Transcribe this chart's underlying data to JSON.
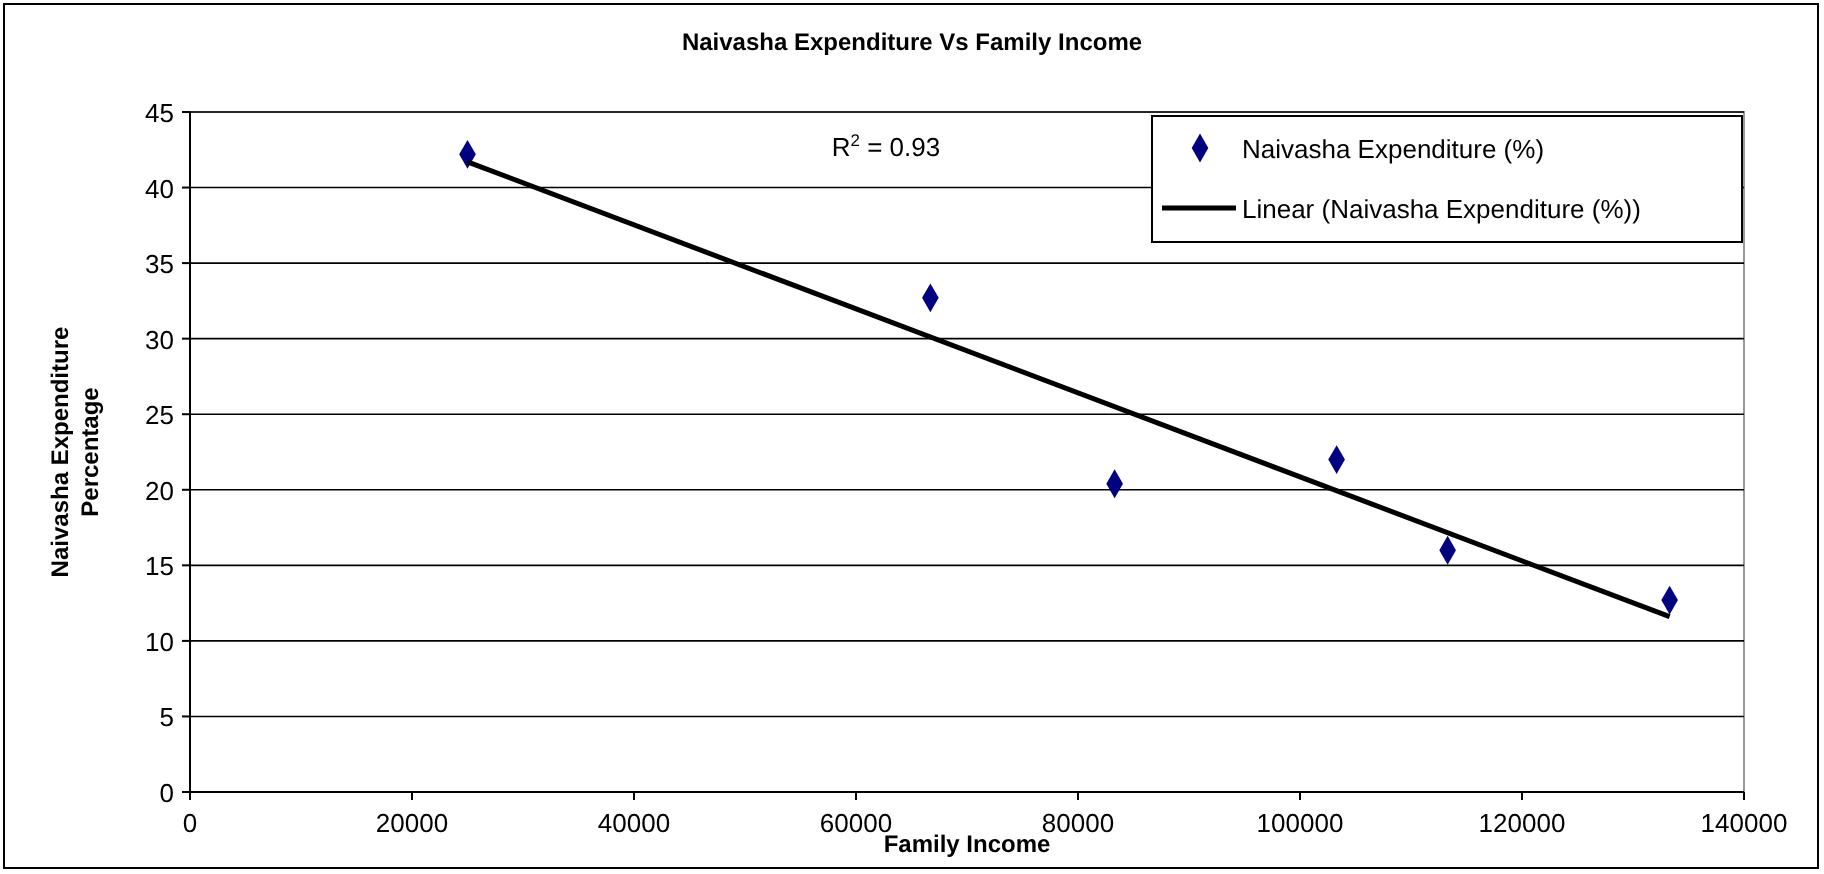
{
  "chart_data": {
    "type": "scatter",
    "title": "Naivasha Expenditure Vs Family Income",
    "xlabel": "Family Income",
    "ylabel": "Naivasha Expenditure Percentage",
    "xlim": [
      0,
      140000
    ],
    "xticks": [
      0,
      20000,
      40000,
      60000,
      80000,
      100000,
      120000,
      140000
    ],
    "ylim": [
      0,
      45
    ],
    "yticks": [
      0,
      5,
      10,
      15,
      20,
      25,
      30,
      35,
      40,
      45
    ],
    "grid": "y",
    "legend": "top right",
    "annotations": [
      "R$^{2}$ = 0.93"
    ],
    "series": [
      {
        "name": "Naivasha Expenditure (%)",
        "color": "#000080",
        "marker": "diamond",
        "x": [
          25000,
          66700,
          83300,
          103300,
          113300,
          133300
        ],
        "values": [
          42.2,
          32.7,
          20.4,
          22.0,
          16.0,
          12.7
        ]
      },
      {
        "type": "line",
        "name": "Linear (Naivasha Expenditure (%))",
        "color": "#000000",
        "line_style": "solid",
        "marker": "none",
        "x": [
          25000,
          133300
        ],
        "values": [
          41.7,
          11.6
        ]
      }
    ]
  }
}
